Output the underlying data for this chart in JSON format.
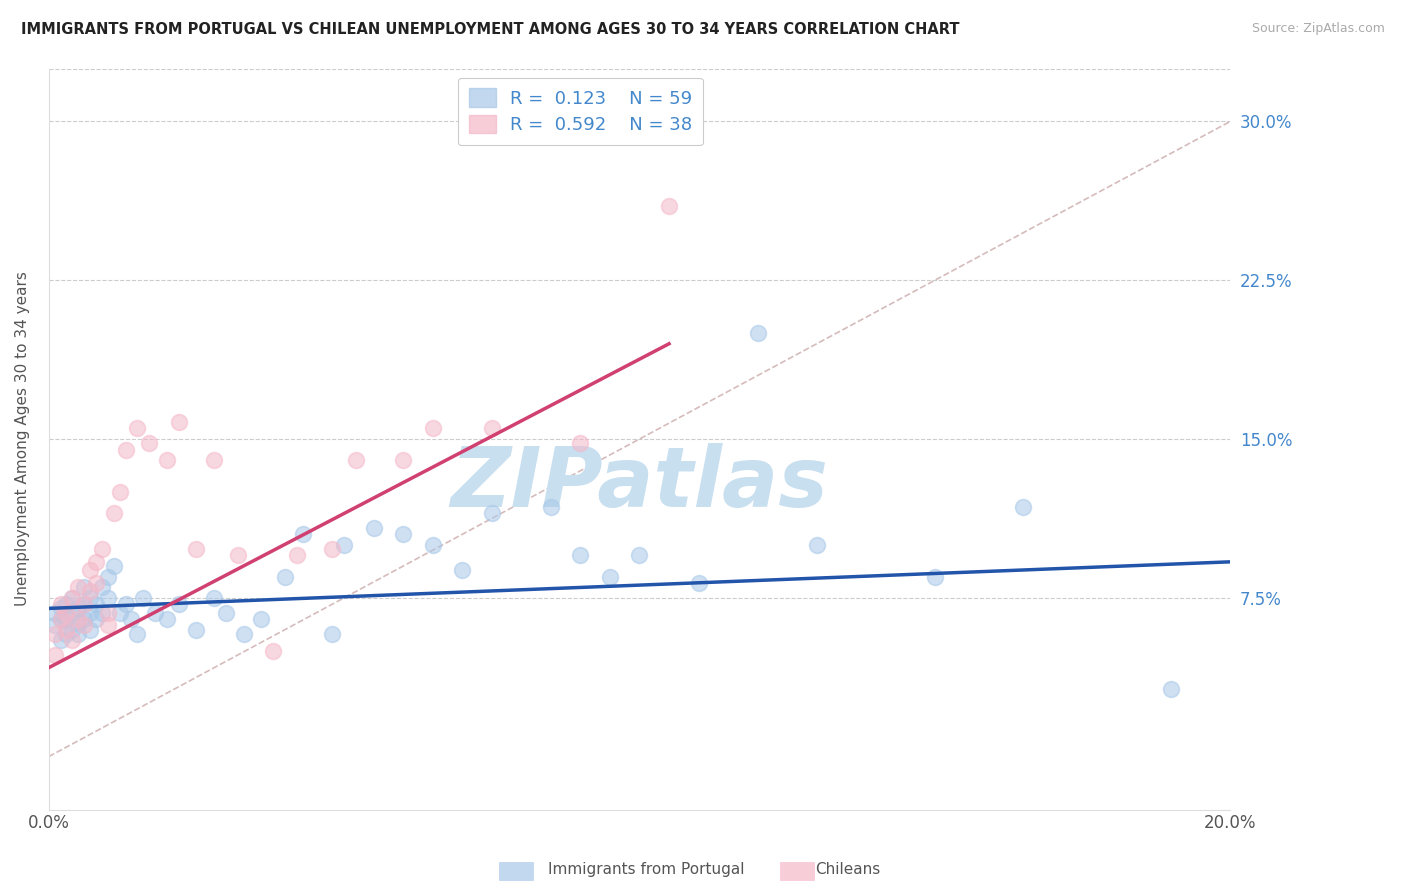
{
  "title": "IMMIGRANTS FROM PORTUGAL VS CHILEAN UNEMPLOYMENT AMONG AGES 30 TO 34 YEARS CORRELATION CHART",
  "source": "Source: ZipAtlas.com",
  "ylabel": "Unemployment Among Ages 30 to 34 years",
  "xlim": [
    0.0,
    0.2
  ],
  "ylim": [
    -0.025,
    0.325
  ],
  "yticks": [
    0.0,
    0.075,
    0.15,
    0.225,
    0.3
  ],
  "ytick_labels": [
    "",
    "7.5%",
    "15.0%",
    "22.5%",
    "30.0%"
  ],
  "xticks": [
    0.0,
    0.05,
    0.1,
    0.15,
    0.2
  ],
  "xtick_labels": [
    "0.0%",
    "",
    "",
    "",
    "20.0%"
  ],
  "legend1_label": "Immigrants from Portugal",
  "legend2_label": "Chileans",
  "R1": "0.123",
  "N1": "59",
  "R2": "0.592",
  "N2": "38",
  "color_blue": "#a8c8e8",
  "color_pink": "#f4b8c8",
  "color_trend_blue": "#2255aa",
  "color_trend_pink": "#d04070",
  "color_ref_line": "#ccaaaa",
  "color_axis_text": "#4488cc",
  "blue_scatter_x": [
    0.001,
    0.001,
    0.002,
    0.002,
    0.002,
    0.003,
    0.003,
    0.003,
    0.004,
    0.004,
    0.004,
    0.005,
    0.005,
    0.005,
    0.006,
    0.006,
    0.006,
    0.007,
    0.007,
    0.007,
    0.008,
    0.008,
    0.009,
    0.009,
    0.01,
    0.01,
    0.011,
    0.012,
    0.013,
    0.014,
    0.015,
    0.016,
    0.018,
    0.02,
    0.022,
    0.025,
    0.028,
    0.03,
    0.033,
    0.036,
    0.04,
    0.043,
    0.048,
    0.05,
    0.055,
    0.06,
    0.065,
    0.07,
    0.075,
    0.085,
    0.09,
    0.095,
    0.1,
    0.11,
    0.12,
    0.13,
    0.15,
    0.165,
    0.19
  ],
  "blue_scatter_y": [
    0.062,
    0.068,
    0.055,
    0.065,
    0.07,
    0.058,
    0.065,
    0.072,
    0.06,
    0.068,
    0.075,
    0.063,
    0.07,
    0.058,
    0.065,
    0.072,
    0.08,
    0.068,
    0.075,
    0.06,
    0.072,
    0.065,
    0.08,
    0.068,
    0.085,
    0.075,
    0.09,
    0.068,
    0.072,
    0.065,
    0.058,
    0.075,
    0.068,
    0.065,
    0.072,
    0.06,
    0.075,
    0.068,
    0.058,
    0.065,
    0.085,
    0.105,
    0.058,
    0.1,
    0.108,
    0.105,
    0.1,
    0.088,
    0.115,
    0.118,
    0.095,
    0.085,
    0.095,
    0.082,
    0.2,
    0.1,
    0.085,
    0.118,
    0.032
  ],
  "pink_scatter_x": [
    0.001,
    0.001,
    0.002,
    0.002,
    0.003,
    0.003,
    0.004,
    0.004,
    0.005,
    0.005,
    0.006,
    0.006,
    0.007,
    0.007,
    0.008,
    0.008,
    0.009,
    0.01,
    0.01,
    0.011,
    0.012,
    0.013,
    0.015,
    0.017,
    0.02,
    0.022,
    0.025,
    0.028,
    0.032,
    0.038,
    0.042,
    0.048,
    0.052,
    0.06,
    0.065,
    0.075,
    0.09,
    0.105
  ],
  "pink_scatter_y": [
    0.058,
    0.048,
    0.065,
    0.072,
    0.06,
    0.068,
    0.075,
    0.055,
    0.065,
    0.08,
    0.072,
    0.062,
    0.078,
    0.088,
    0.082,
    0.092,
    0.098,
    0.068,
    0.062,
    0.115,
    0.125,
    0.145,
    0.155,
    0.148,
    0.14,
    0.158,
    0.098,
    0.14,
    0.095,
    0.05,
    0.095,
    0.098,
    0.14,
    0.14,
    0.155,
    0.155,
    0.148,
    0.26
  ],
  "trend_blue_x0": 0.0,
  "trend_blue_x1": 0.2,
  "trend_blue_y0": 0.07,
  "trend_blue_y1": 0.092,
  "trend_pink_x0": 0.0,
  "trend_pink_x1": 0.105,
  "trend_pink_y0": 0.042,
  "trend_pink_y1": 0.195,
  "ref_line_x0": 0.0,
  "ref_line_x1": 0.2,
  "ref_line_y0": 0.0,
  "ref_line_y1": 0.3,
  "watermark": "ZIPatlas",
  "watermark_color": "#c8dff0"
}
